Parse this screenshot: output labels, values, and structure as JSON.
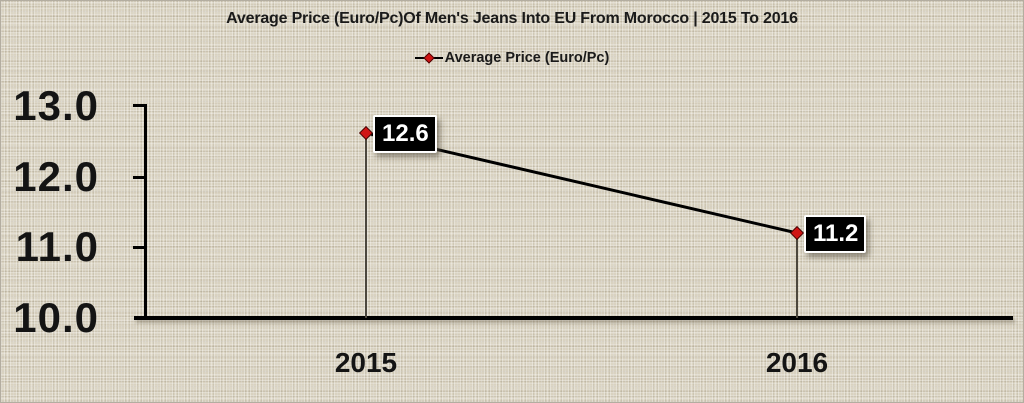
{
  "title": "Average Price (Euro/Pc)Of Men's Jeans Into EU From Morocco | 2015 To 2016",
  "legend": {
    "label": "Average Price (Euro/Pc)",
    "marker": "red-diamond-on-black-line"
  },
  "chart_data": {
    "type": "line",
    "categories": [
      "2015",
      "2016"
    ],
    "series": [
      {
        "name": "Average Price (Euro/Pc)",
        "values": [
          12.6,
          11.2
        ]
      }
    ],
    "data_labels": [
      "12.6",
      "11.2"
    ],
    "title": "Average Price (Euro/Pc)Of Men's Jeans Into EU From Morocco | 2015 To 2016",
    "xlabel": "",
    "ylabel": "",
    "ylim": [
      10.0,
      13.0
    ],
    "yticks": [
      "13.0",
      "12.0",
      "11.0",
      "10.0"
    ],
    "grid": false,
    "legend_position": "top",
    "colors": {
      "line": "#000000",
      "marker_fill": "#d01414",
      "marker_edge": "#4a0404",
      "data_label_bg": "#000000",
      "data_label_text": "#ffffff",
      "dropline": "#4c473d",
      "axis": "#000000",
      "background": "#d9d2c0",
      "text": "#1a1a1a"
    }
  }
}
